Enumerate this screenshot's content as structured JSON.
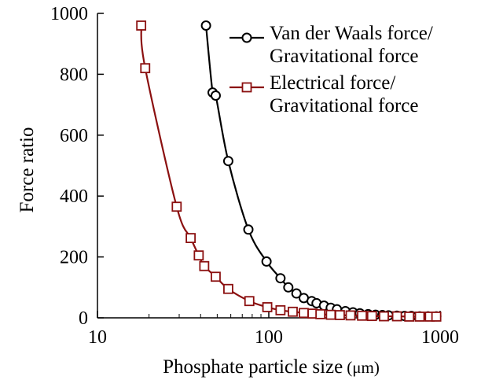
{
  "chart_data": {
    "type": "line",
    "xlabel": "Phosphate particle size",
    "xlabel_unit": "(μm)",
    "ylabel": "Force ratio",
    "x_scale": "log",
    "xlim": [
      10,
      1000
    ],
    "ylim": [
      0,
      1000
    ],
    "x_ticks": [
      10,
      100,
      1000
    ],
    "y_ticks": [
      0,
      200,
      400,
      600,
      800,
      1000
    ],
    "x_tick_labels": [
      "10",
      "100",
      "1000"
    ],
    "y_tick_labels": [
      "0",
      "200",
      "400",
      "600",
      "800",
      "1000"
    ],
    "grid": false,
    "legend_position": "top-right",
    "series": [
      {
        "name": "Van der Waals force/ Gravitational force",
        "legend_lines": [
          "Van der Waals force/",
          "Gravitational force"
        ],
        "color": "#000000",
        "marker": "circle",
        "x": [
          43,
          47,
          49,
          58,
          76,
          97,
          117,
          130,
          145,
          160,
          178,
          190,
          210,
          230,
          250,
          280,
          310,
          340,
          380,
          420,
          460,
          500,
          560,
          620,
          680,
          760,
          850,
          950
        ],
        "y": [
          960,
          740,
          730,
          515,
          290,
          185,
          130,
          100,
          80,
          65,
          55,
          48,
          40,
          33,
          28,
          22,
          18,
          15,
          12,
          10,
          9,
          8,
          7,
          6,
          6,
          5,
          5,
          5
        ]
      },
      {
        "name": "Electrical force/ Gravitational force",
        "legend_lines": [
          "Electrical force/",
          "Gravitational force"
        ],
        "color": "#8b1010",
        "marker": "square",
        "x": [
          18,
          19,
          29,
          35,
          39,
          42,
          49,
          58,
          77,
          98,
          117,
          138,
          160,
          180,
          200,
          230,
          260,
          300,
          350,
          400,
          470,
          560,
          660,
          760,
          870,
          950
        ],
        "y": [
          960,
          820,
          365,
          262,
          205,
          170,
          135,
          95,
          55,
          35,
          25,
          20,
          16,
          14,
          12,
          10,
          9,
          8,
          7,
          6,
          5,
          5,
          4,
          4,
          4,
          4
        ]
      }
    ]
  }
}
